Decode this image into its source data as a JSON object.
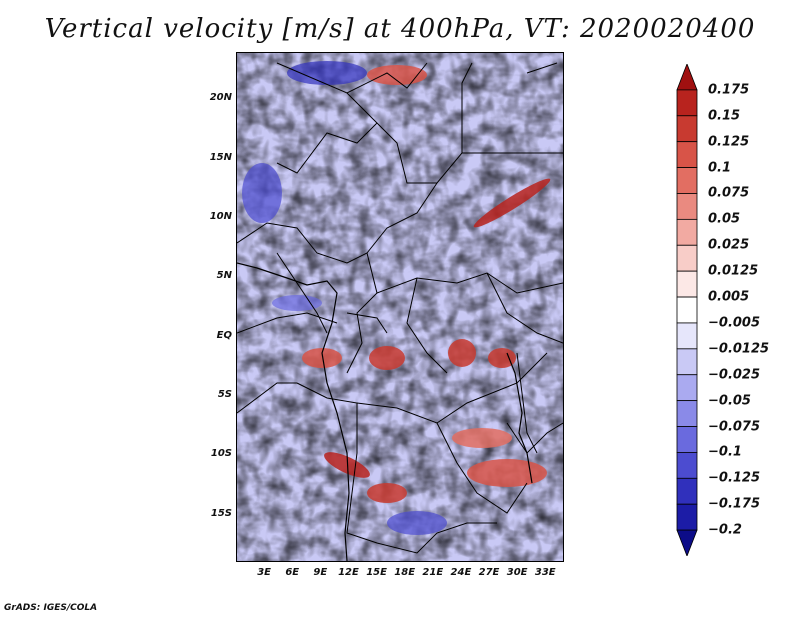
{
  "title": "Vertical velocity [m/s] at 400hPa, VT: 2020020400",
  "credit": "GrADS: IGES/COLA",
  "map": {
    "variable": "Vertical velocity",
    "level": "400hPa",
    "valid_time": "2020020400",
    "units": "m/s",
    "lat_range": [
      -19,
      24
    ],
    "lon_range": [
      0,
      35
    ],
    "lat_ticks": [
      {
        "value": 20,
        "label": "20N"
      },
      {
        "value": 15,
        "label": "15N"
      },
      {
        "value": 10,
        "label": "10N"
      },
      {
        "value": 5,
        "label": "5N"
      },
      {
        "value": 0,
        "label": "EQ"
      },
      {
        "value": -5,
        "label": "5S"
      },
      {
        "value": -10,
        "label": "10S"
      },
      {
        "value": -15,
        "label": "15S"
      }
    ],
    "lon_ticks": [
      {
        "value": 3,
        "label": "3E"
      },
      {
        "value": 6,
        "label": "6E"
      },
      {
        "value": 9,
        "label": "9E"
      },
      {
        "value": 12,
        "label": "12E"
      },
      {
        "value": 15,
        "label": "15E"
      },
      {
        "value": 18,
        "label": "18E"
      },
      {
        "value": 21,
        "label": "21E"
      },
      {
        "value": 24,
        "label": "24E"
      },
      {
        "value": 27,
        "label": "27E"
      },
      {
        "value": 30,
        "label": "30E"
      },
      {
        "value": 33,
        "label": "33E"
      }
    ]
  },
  "legend": {
    "labels": [
      "0.175",
      "0.15",
      "0.125",
      "0.1",
      "0.075",
      "0.05",
      "0.025",
      "0.0125",
      "0.005",
      "−0.005",
      "−0.0125",
      "−0.025",
      "−0.05",
      "−0.075",
      "−0.1",
      "−0.125",
      "−0.175",
      "−0.2"
    ],
    "colors": [
      "#a01010",
      "#b8231e",
      "#c83a30",
      "#d85448",
      "#e26e62",
      "#ea8a80",
      "#f2aaa2",
      "#f8cdc8",
      "#fce8e6",
      "#ffffff",
      "#e6e6fb",
      "#c9c9f5",
      "#aaaaf0",
      "#8a8ae8",
      "#6a6ade",
      "#4c4cd0",
      "#3030bc",
      "#1c1ca6",
      "#0c0c88"
    ]
  }
}
